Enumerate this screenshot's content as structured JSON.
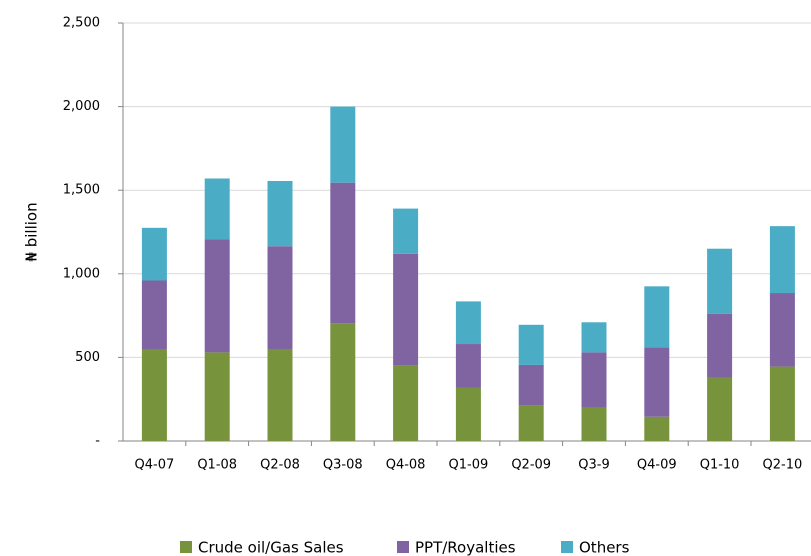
{
  "chart_data": {
    "type": "stacked_bar",
    "y_label": "₦ billion",
    "categories": [
      "Q4-07",
      "Q1-08",
      "Q2-08",
      "Q3-08",
      "Q4-08",
      "Q1-09",
      "Q2-09",
      "Q3-9",
      "Q4-09",
      "Q1-10",
      "Q2-10"
    ],
    "series": [
      {
        "name": "Crude oil/Gas Sales",
        "color": "#77933c",
        "values": [
          545,
          530,
          545,
          705,
          450,
          320,
          215,
          200,
          145,
          380,
          445
        ]
      },
      {
        "name": "PPT/Royalties",
        "color": "#8064a2",
        "values": [
          415,
          675,
          620,
          840,
          670,
          260,
          240,
          330,
          415,
          380,
          440
        ]
      },
      {
        "name": "Others",
        "color": "#4bacc6",
        "values": [
          315,
          365,
          390,
          455,
          270,
          255,
          240,
          180,
          365,
          390,
          400
        ]
      }
    ],
    "ylim": [
      0,
      2500
    ],
    "yticks": [
      {
        "value": 0,
        "label": "-"
      },
      500,
      {
        "value": 1000,
        "label": "1,000"
      },
      {
        "value": 1500,
        "label": "1,500"
      },
      {
        "value": 2000,
        "label": "2,000"
      },
      {
        "value": 2500,
        "label": "2,500"
      }
    ],
    "grid": true,
    "legend": "bottom"
  }
}
